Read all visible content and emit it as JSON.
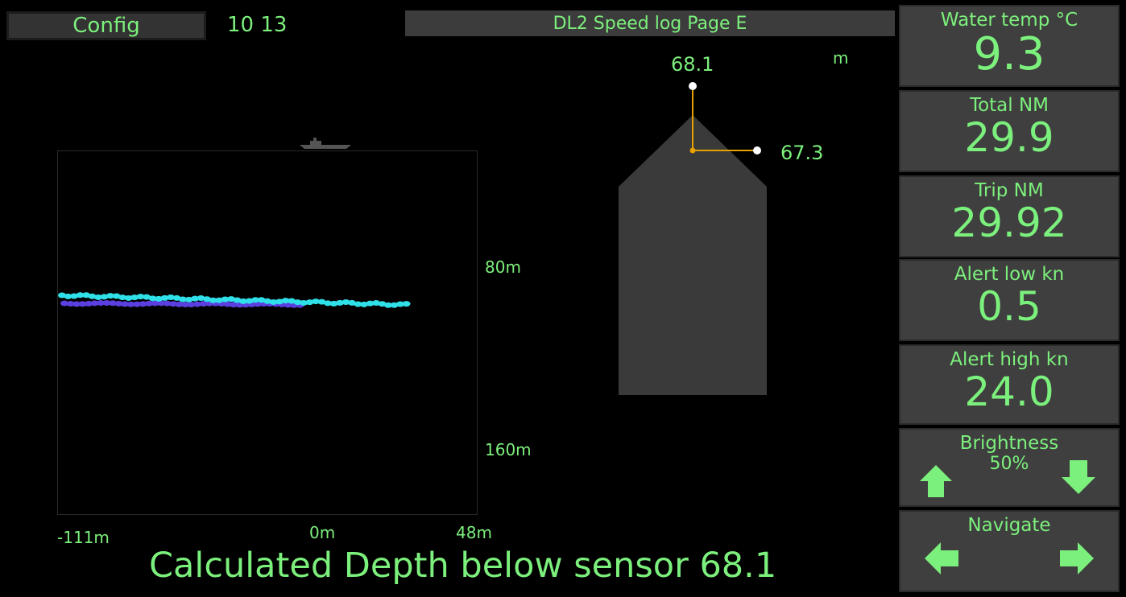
{
  "header": {
    "config_label": "Config",
    "time": "10 13",
    "title": "DL2 Speed log Page E"
  },
  "plot": {
    "depth_labels": [
      "80m",
      "160m"
    ],
    "x_labels": [
      "-111m",
      "0m",
      "48m"
    ],
    "point_colors": {
      "cyan": "#2FE0E8",
      "purple": "#5B3FE0"
    }
  },
  "sensor": {
    "unit": "m",
    "forward_value": "68.1",
    "side_value": "67.3"
  },
  "readouts": {
    "water_temp": {
      "label": "Water temp °C",
      "value": "9.3"
    },
    "total_nm": {
      "label": "Total NM",
      "value": "29.9"
    },
    "trip_nm": {
      "label": "Trip NM",
      "value": "29.92"
    },
    "alert_low": {
      "label": "Alert low kn",
      "value": "0.5"
    },
    "alert_high": {
      "label": "Alert high kn",
      "value": "24.0"
    },
    "brightness": {
      "label": "Brightness",
      "value": "50%"
    },
    "navigate": {
      "label": "Navigate"
    }
  },
  "caption": "Calculated Depth below sensor 68.1",
  "colors": {
    "text": "#7CF07C",
    "tile": "#3f3f3f",
    "background": "#000000"
  }
}
